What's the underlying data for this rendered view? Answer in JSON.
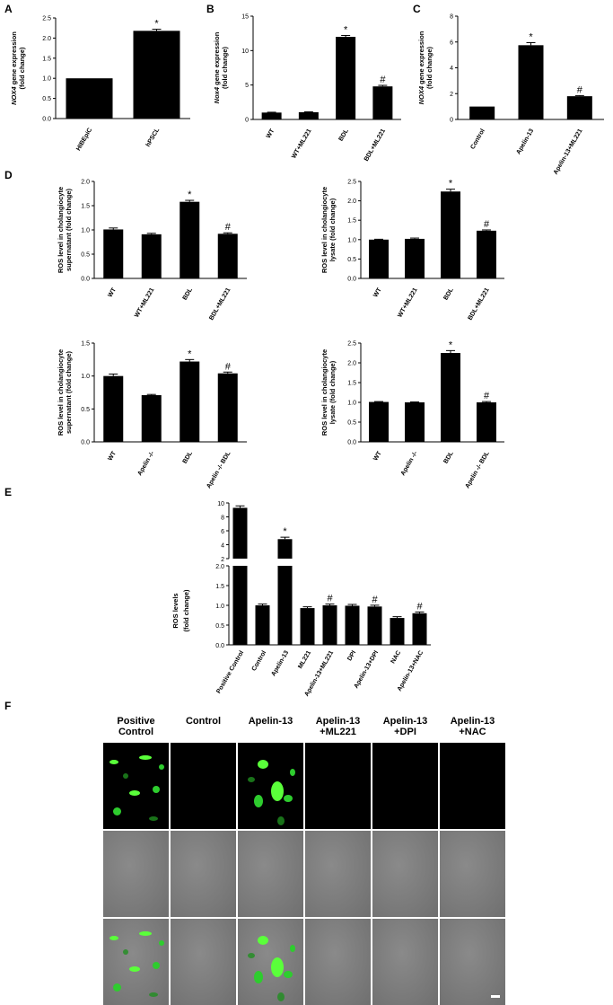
{
  "panels": {
    "A": "A",
    "B": "B",
    "C": "C",
    "D": "D",
    "E": "E",
    "F": "F"
  },
  "chart_data": [
    {
      "id": "A",
      "type": "bar",
      "categories": [
        "HIBEpiC",
        "hPSCL"
      ],
      "values": [
        1.0,
        2.18
      ],
      "errors": [
        0.0,
        0.04
      ],
      "annotations": [
        "",
        "*"
      ],
      "ylabel_italic": "NOX4",
      "ylabel_rest": " gene expression",
      "ylabel2": "(fold change)",
      "ylim": [
        0,
        2.5
      ],
      "yticks": [
        "0.0",
        "0.5",
        "1.0",
        "1.5",
        "2.0",
        "2.5"
      ],
      "ytick_values": [
        0,
        0.5,
        1.0,
        1.5,
        2.0,
        2.5
      ]
    },
    {
      "id": "B",
      "type": "bar",
      "categories": [
        "WT",
        "WT+ML221",
        "BDL",
        "BDL+ML221"
      ],
      "values": [
        1.0,
        1.05,
        12.0,
        4.8
      ],
      "errors": [
        0.05,
        0.05,
        0.2,
        0.15
      ],
      "annotations": [
        "",
        "",
        "*",
        "#"
      ],
      "ylabel_italic": "Nox4",
      "ylabel_rest": " gene expression",
      "ylabel2": "(fold change)",
      "ylim": [
        0,
        15
      ],
      "yticks": [
        "0",
        "5",
        "10",
        "15"
      ],
      "ytick_values": [
        0,
        5,
        10,
        15
      ]
    },
    {
      "id": "C",
      "type": "bar",
      "categories": [
        "Control",
        "Apelin-13",
        "Apelin-13+ML221"
      ],
      "values": [
        1.0,
        5.75,
        1.8
      ],
      "errors": [
        0.0,
        0.2,
        0.05
      ],
      "annotations": [
        "",
        "*",
        "#"
      ],
      "ylabel_italic": "NOX4",
      "ylabel_rest": " gene expression",
      "ylabel2": "(fold change)",
      "ylim": [
        0,
        8
      ],
      "yticks": [
        "0",
        "2",
        "4",
        "6",
        "8"
      ],
      "ytick_values": [
        0,
        2,
        4,
        6,
        8
      ]
    },
    {
      "id": "D1",
      "type": "bar",
      "categories": [
        "WT",
        "WT+ML221",
        "BDL",
        "BDL+ML221"
      ],
      "values": [
        1.01,
        0.91,
        1.58,
        0.92
      ],
      "errors": [
        0.03,
        0.02,
        0.03,
        0.02
      ],
      "annotations": [
        "",
        "",
        "*",
        "#"
      ],
      "ylabel": "ROS level in cholangiocyte",
      "ylabel2": "supernatant (fold change)",
      "ylim": [
        0,
        2.0
      ],
      "yticks": [
        "0.0",
        "0.5",
        "1.0",
        "1.5",
        "2.0"
      ],
      "ytick_values": [
        0,
        0.5,
        1.0,
        1.5,
        2.0
      ]
    },
    {
      "id": "D2",
      "type": "bar",
      "categories": [
        "WT",
        "WT+ML221",
        "BDL",
        "BDL+ML221"
      ],
      "values": [
        1.0,
        1.02,
        2.24,
        1.23
      ],
      "errors": [
        0.01,
        0.02,
        0.06,
        0.02
      ],
      "annotations": [
        "",
        "",
        "*",
        "#"
      ],
      "ylabel": "ROS level in cholangiocyte",
      "ylabel2": "lysate (fold change)",
      "ylim": [
        0,
        2.5
      ],
      "yticks": [
        "0.0",
        "0.5",
        "1.0",
        "1.5",
        "2.0",
        "2.5"
      ],
      "ytick_values": [
        0,
        0.5,
        1.0,
        1.5,
        2.0,
        2.5
      ]
    },
    {
      "id": "D3",
      "type": "bar",
      "categories": [
        "WT",
        "Apelin -/-",
        "BDL",
        "Apelin -/- BDL"
      ],
      "values": [
        1.0,
        0.71,
        1.22,
        1.04
      ],
      "errors": [
        0.03,
        0.01,
        0.03,
        0.02
      ],
      "annotations": [
        "",
        "",
        "*",
        "#"
      ],
      "ylabel": "ROS level in cholangiocyte",
      "ylabel2": "supernatant (fold change)",
      "ylim": [
        0,
        1.5
      ],
      "yticks": [
        "0.0",
        "0.5",
        "1.0",
        "1.5"
      ],
      "ytick_values": [
        0,
        0.5,
        1.0,
        1.5
      ]
    },
    {
      "id": "D4",
      "type": "bar",
      "categories": [
        "WT",
        "Apelin -/-",
        "BDL",
        "Apelin -/- BDL"
      ],
      "values": [
        1.01,
        1.0,
        2.25,
        1.0
      ],
      "errors": [
        0.01,
        0.01,
        0.06,
        0.02
      ],
      "annotations": [
        "",
        "",
        "*",
        "#"
      ],
      "ylabel": "ROS level in cholangiocyte",
      "ylabel2": "lysate (fold change)",
      "ylim": [
        0,
        2.5
      ],
      "yticks": [
        "0.0",
        "0.5",
        "1.0",
        "1.5",
        "2.0",
        "2.5"
      ],
      "ytick_values": [
        0,
        0.5,
        1.0,
        1.5,
        2.0,
        2.5
      ]
    },
    {
      "id": "E",
      "type": "bar",
      "categories": [
        "Positive Control",
        "Control",
        "Apelin-13",
        "ML221",
        "Apelin-13+ML221",
        "DPI",
        "Apelin-13+DPI",
        "NAC",
        "Apelin-13+NAC"
      ],
      "values": [
        9.3,
        1.0,
        4.8,
        0.93,
        1.0,
        0.99,
        0.97,
        0.68,
        0.8
      ],
      "errors": [
        0.15,
        0.01,
        0.15,
        0.01,
        0.01,
        0.01,
        0.01,
        0.01,
        0.01
      ],
      "annotations": [
        "",
        "",
        "*",
        "",
        "#",
        "",
        "#",
        "",
        "#"
      ],
      "ylabel": "ROS levels",
      "ylabel2": "(fold change)",
      "axis_break": true,
      "lower_ylim": [
        0,
        2.0
      ],
      "lower_yticks": [
        "0.0",
        "0.5",
        "1.0",
        "1.5",
        "2.0"
      ],
      "lower_ytick_values": [
        0,
        0.5,
        1.0,
        1.5,
        2.0
      ],
      "upper_ylim": [
        2,
        10
      ],
      "upper_yticks": [
        "2",
        "4",
        "6",
        "8",
        "10"
      ],
      "upper_ytick_values": [
        2,
        4,
        6,
        8,
        10
      ]
    }
  ],
  "micrographs": {
    "columns": [
      "Positive Control",
      "Control",
      "Apelin-13",
      "Apelin-13 +ML221",
      "Apelin-13 +DPI",
      "Apelin-13 +NAC"
    ],
    "rows": [
      "fluorescence",
      "brightfield",
      "merge"
    ],
    "fluorescence_color": "#2ecc2e"
  }
}
